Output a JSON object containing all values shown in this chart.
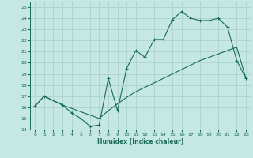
{
  "title": "",
  "xlabel": "Humidex (Indice chaleur)",
  "ylabel": "",
  "bg_color": "#c5e8e2",
  "grid_color": "#a8cfc8",
  "line_color": "#1a6b5a",
  "xlim": [
    -0.5,
    23.5
  ],
  "ylim": [
    14,
    25.5
  ],
  "xticks": [
    0,
    1,
    2,
    3,
    4,
    5,
    6,
    7,
    8,
    9,
    10,
    11,
    12,
    13,
    14,
    15,
    16,
    17,
    18,
    19,
    20,
    21,
    22,
    23
  ],
  "yticks": [
    14,
    15,
    16,
    17,
    18,
    19,
    20,
    21,
    22,
    23,
    24,
    25
  ],
  "line1_x": [
    0,
    1,
    3,
    4,
    5,
    6,
    7,
    8,
    9,
    10,
    11,
    12,
    13,
    14,
    15,
    16,
    17,
    18,
    19,
    20,
    21,
    22,
    23
  ],
  "line1_y": [
    16.1,
    17.0,
    16.2,
    15.5,
    15.0,
    14.3,
    14.4,
    18.6,
    15.7,
    19.5,
    21.1,
    20.5,
    22.1,
    22.1,
    23.9,
    24.6,
    24.0,
    23.8,
    23.8,
    24.0,
    23.2,
    20.2,
    18.6
  ],
  "line2_x": [
    0,
    1,
    3,
    4,
    5,
    6,
    7,
    8,
    9,
    10,
    11,
    12,
    13,
    14,
    15,
    16,
    17,
    18,
    19,
    20,
    21,
    22,
    23
  ],
  "line2_y": [
    16.1,
    17.0,
    16.2,
    15.9,
    15.6,
    15.3,
    15.0,
    15.7,
    16.3,
    16.9,
    17.4,
    17.8,
    18.2,
    18.6,
    19.0,
    19.4,
    19.8,
    20.2,
    20.5,
    20.8,
    21.1,
    21.4,
    18.6
  ]
}
